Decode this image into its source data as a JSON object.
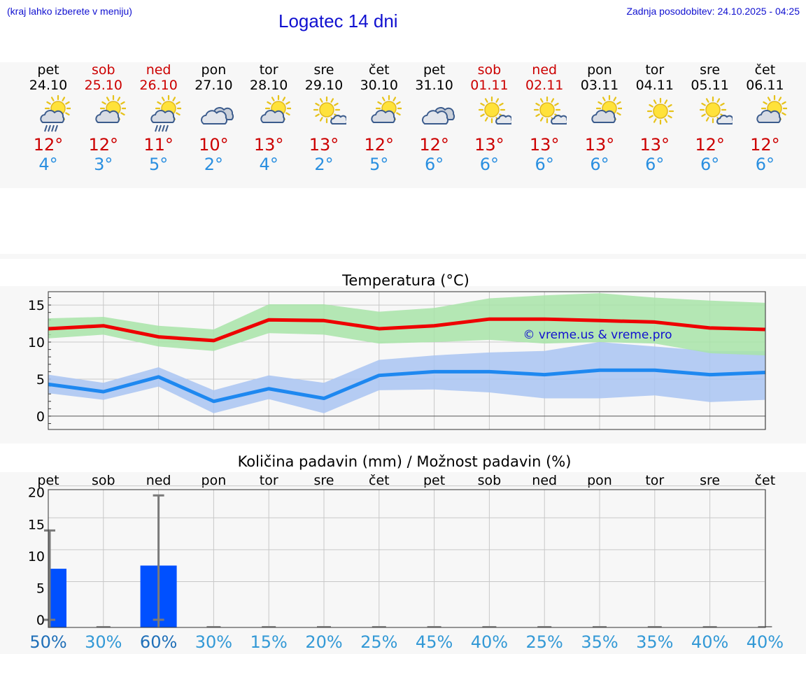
{
  "header": {
    "hint": "(kraj lahko izberete v meniju)",
    "title": "Logatec 14 dni",
    "updated": "Zadnja posodobitev: 24.10.2025 - 04:25"
  },
  "days": [
    {
      "name": "pet",
      "date": "24.10",
      "weekend": false,
      "icon": "sun-cloud-rain-icon",
      "tmax": "12°",
      "tmin": "4°"
    },
    {
      "name": "sob",
      "date": "25.10",
      "weekend": true,
      "icon": "sun-cloud-icon",
      "tmax": "12°",
      "tmin": "3°"
    },
    {
      "name": "ned",
      "date": "26.10",
      "weekend": true,
      "icon": "sun-cloud-rain-icon",
      "tmax": "11°",
      "tmin": "5°"
    },
    {
      "name": "pon",
      "date": "27.10",
      "weekend": false,
      "icon": "cloudy-icon",
      "tmax": "10°",
      "tmin": "2°"
    },
    {
      "name": "tor",
      "date": "28.10",
      "weekend": false,
      "icon": "sun-cloud-icon",
      "tmax": "13°",
      "tmin": "4°"
    },
    {
      "name": "sre",
      "date": "29.10",
      "weekend": false,
      "icon": "sun-small-cloud-icon",
      "tmax": "13°",
      "tmin": "2°"
    },
    {
      "name": "čet",
      "date": "30.10",
      "weekend": false,
      "icon": "sun-cloud-icon",
      "tmax": "12°",
      "tmin": "5°"
    },
    {
      "name": "pet",
      "date": "31.10",
      "weekend": false,
      "icon": "cloudy-icon",
      "tmax": "12°",
      "tmin": "6°"
    },
    {
      "name": "sob",
      "date": "01.11",
      "weekend": true,
      "icon": "sun-small-cloud-icon",
      "tmax": "13°",
      "tmin": "6°"
    },
    {
      "name": "ned",
      "date": "02.11",
      "weekend": true,
      "icon": "sun-small-cloud-icon",
      "tmax": "13°",
      "tmin": "6°"
    },
    {
      "name": "pon",
      "date": "03.11",
      "weekend": false,
      "icon": "sun-cloud-icon",
      "tmax": "13°",
      "tmin": "6°"
    },
    {
      "name": "tor",
      "date": "04.11",
      "weekend": false,
      "icon": "sun-icon",
      "tmax": "13°",
      "tmin": "6°"
    },
    {
      "name": "sre",
      "date": "05.11",
      "weekend": false,
      "icon": "sun-small-cloud-icon",
      "tmax": "12°",
      "tmin": "6°"
    },
    {
      "name": "čet",
      "date": "06.11",
      "weekend": false,
      "icon": "sun-cloud-icon",
      "tmax": "12°",
      "tmin": "6°"
    }
  ],
  "colors": {
    "weekend": "#cc0000",
    "max_line": "#ee0000",
    "max_band": "#a8e4a8",
    "min_line": "#1e88f0",
    "min_band": "#a9c4f2",
    "precip_bar": "#0050ff",
    "percent_text": "#3399d6"
  },
  "chart_data": [
    {
      "type": "line",
      "title": "Temperatura (°C)",
      "watermark": "© vreme.us & vreme.pro",
      "ylim": [
        -1.8,
        16.8
      ],
      "yticks": [
        0,
        5,
        10,
        15
      ],
      "x": [
        0,
        1,
        2,
        3,
        4,
        5,
        6,
        7,
        8,
        9,
        10,
        11,
        12,
        13
      ],
      "series": [
        {
          "name": "max",
          "values": [
            11.8,
            12.2,
            10.7,
            10.2,
            13.0,
            12.9,
            11.8,
            12.2,
            13.1,
            13.1,
            12.9,
            12.7,
            11.9,
            11.7
          ]
        },
        {
          "name": "max_band_low",
          "values": [
            10.5,
            11.0,
            9.4,
            8.8,
            11.2,
            11.0,
            9.8,
            10.0,
            10.3,
            9.8,
            10.0,
            9.8,
            8.5,
            8.2
          ]
        },
        {
          "name": "max_band_high",
          "values": [
            13.2,
            13.4,
            12.2,
            11.7,
            15.1,
            15.1,
            14.1,
            14.6,
            15.9,
            16.3,
            16.6,
            16.0,
            15.6,
            15.3
          ]
        },
        {
          "name": "min",
          "values": [
            4.3,
            3.3,
            5.3,
            2.0,
            3.7,
            2.4,
            5.5,
            6.0,
            6.0,
            5.6,
            6.2,
            6.2,
            5.6,
            5.9
          ]
        },
        {
          "name": "min_band_low",
          "values": [
            3.1,
            2.2,
            4.0,
            0.4,
            2.3,
            0.4,
            3.5,
            3.6,
            3.2,
            2.4,
            2.4,
            2.8,
            1.9,
            2.2
          ]
        },
        {
          "name": "min_band_high",
          "values": [
            5.6,
            4.5,
            6.6,
            3.5,
            5.5,
            4.5,
            7.6,
            8.2,
            8.6,
            8.8,
            10.0,
            9.4,
            8.8,
            8.8
          ]
        }
      ]
    },
    {
      "type": "bar",
      "title": "Količina padavin (mm) / Možnost padavin (%)",
      "categories": [
        "pet",
        "sob",
        "ned",
        "pon",
        "tor",
        "sre",
        "čet",
        "pet",
        "sob",
        "ned",
        "pon",
        "tor",
        "sre",
        "čet"
      ],
      "values": [
        8.0,
        0,
        8.5,
        0,
        0,
        0,
        0,
        0,
        0,
        0,
        0,
        0,
        0,
        0
      ],
      "error_high": [
        14.0,
        0,
        19.5,
        0,
        0,
        0,
        0,
        0,
        0,
        0,
        0,
        0,
        0,
        0
      ],
      "ylim": [
        -1.2,
        20.4
      ],
      "yticks": [
        0,
        5,
        10,
        15,
        20
      ],
      "probability": [
        "50%",
        "30%",
        "60%",
        "30%",
        "15%",
        "20%",
        "25%",
        "45%",
        "40%",
        "25%",
        "35%",
        "35%",
        "40%",
        "40%"
      ]
    }
  ]
}
